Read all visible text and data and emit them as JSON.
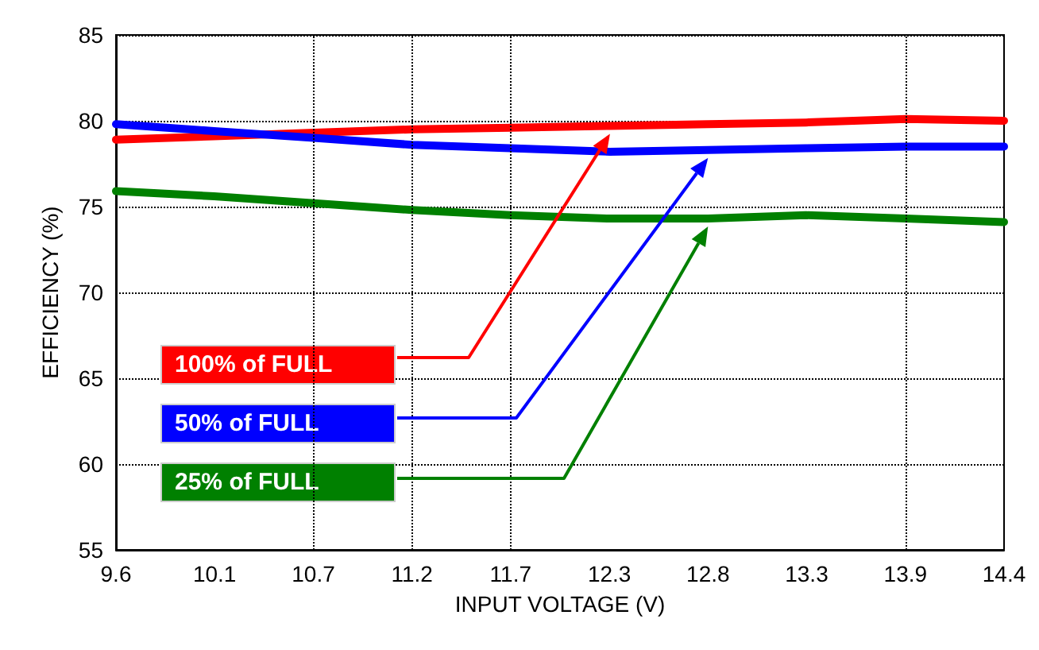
{
  "chart_data": {
    "type": "line",
    "xlabel": "INPUT VOLTAGE (V)",
    "ylabel": "EFFICIENCY (%)",
    "x": [
      9.6,
      10.13,
      10.67,
      11.2,
      11.73,
      12.27,
      12.8,
      13.33,
      13.87,
      14.4
    ],
    "series": [
      {
        "name": "100% of FULL",
        "color": "#ff0000",
        "values": [
          78.9,
          79.1,
          79.3,
          79.5,
          79.6,
          79.7,
          79.8,
          79.9,
          80.1,
          80.0
        ]
      },
      {
        "name": "50% of FULL",
        "color": "#0000ff",
        "values": [
          79.8,
          79.4,
          79.0,
          78.6,
          78.4,
          78.2,
          78.3,
          78.4,
          78.5,
          78.5
        ]
      },
      {
        "name": "25% of FULL",
        "color": "#008000",
        "values": [
          75.9,
          75.6,
          75.2,
          74.8,
          74.5,
          74.3,
          74.3,
          74.5,
          74.3,
          74.1
        ]
      }
    ],
    "xlim": [
      9.6,
      14.4
    ],
    "xticks": [
      9.6,
      {
        "value": 10.133,
        "label": "10.1"
      },
      {
        "value": 10.667,
        "label": "10.7"
      },
      11.2,
      {
        "value": 11.733,
        "label": "11.7"
      },
      {
        "value": 12.267,
        "label": "12.3"
      },
      12.8,
      {
        "value": 13.333,
        "label": "13.3"
      },
      {
        "value": 13.867,
        "label": "13.9"
      },
      14.4
    ],
    "ylim": [
      55,
      85
    ],
    "yticks": [
      55,
      60,
      65,
      70,
      75,
      80,
      85
    ],
    "grid": "y",
    "legend": "bottom left",
    "marker": "none",
    "line_style": "solid",
    "ref_lines": [
      {
        "axis": "x",
        "value": 10.667,
        "line_style": "dotted"
      },
      {
        "axis": "x",
        "value": 11.2,
        "line_style": "dotted"
      },
      {
        "axis": "x",
        "value": 11.733,
        "line_style": "dotted"
      },
      {
        "axis": "x",
        "value": 13.867,
        "line_style": "dotted"
      }
    ]
  }
}
